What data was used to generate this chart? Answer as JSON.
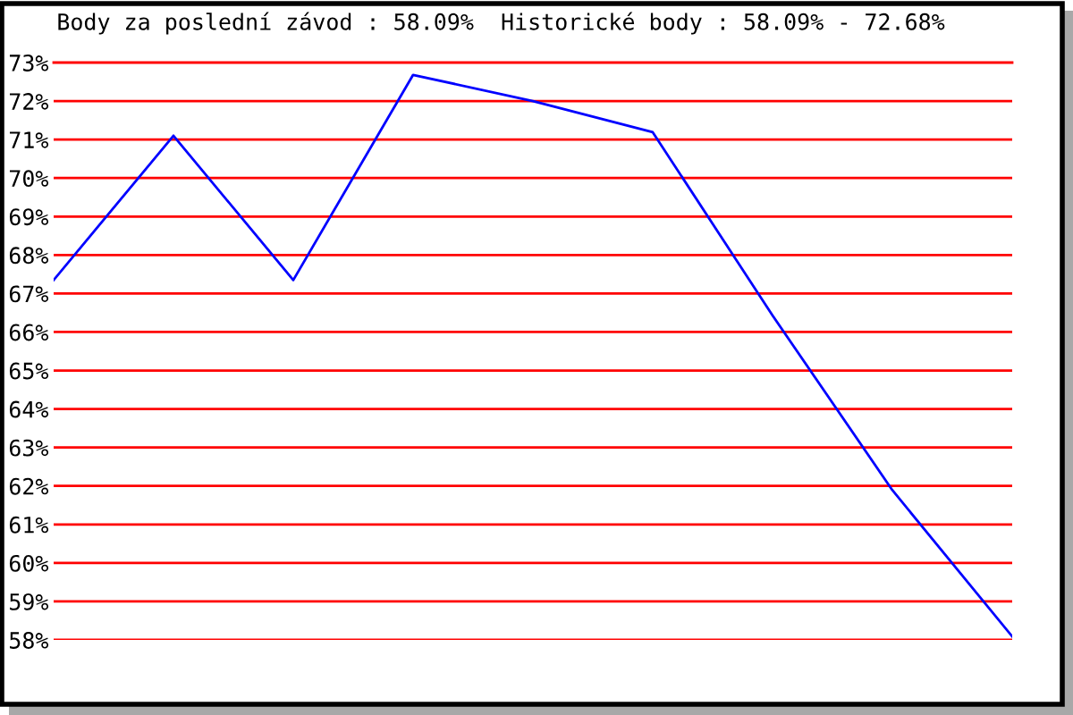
{
  "chart_data": {
    "type": "line",
    "title": "Body za poslední závod : 58.09%  Historické body : 58.09% - 72.68%",
    "categories": [
      null,
      null,
      null,
      null,
      null,
      null,
      null,
      null,
      null
    ],
    "series": [
      {
        "color": "#0000ff",
        "values": [
          67.35,
          71.1,
          67.35,
          72.68,
          72.0,
          71.19,
          66.43,
          61.89,
          58.09
        ]
      }
    ],
    "ylim": [
      58,
      73
    ],
    "yticks": [
      {
        "value": 58,
        "label": "58%"
      },
      {
        "value": 59,
        "label": "59%"
      },
      {
        "value": 60,
        "label": "60%"
      },
      {
        "value": 61,
        "label": "61%"
      },
      {
        "value": 62,
        "label": "62%"
      },
      {
        "value": 63,
        "label": "63%"
      },
      {
        "value": 64,
        "label": "64%"
      },
      {
        "value": 65,
        "label": "65%"
      },
      {
        "value": 66,
        "label": "66%"
      },
      {
        "value": 67,
        "label": "67%"
      },
      {
        "value": 68,
        "label": "68%"
      },
      {
        "value": 69,
        "label": "69%"
      },
      {
        "value": 70,
        "label": "70%"
      },
      {
        "value": 71,
        "label": "71%"
      },
      {
        "value": 72,
        "label": "72%"
      },
      {
        "value": 73,
        "label": "73%"
      }
    ],
    "grid": "y",
    "marker": "none",
    "line_style": "solid"
  }
}
